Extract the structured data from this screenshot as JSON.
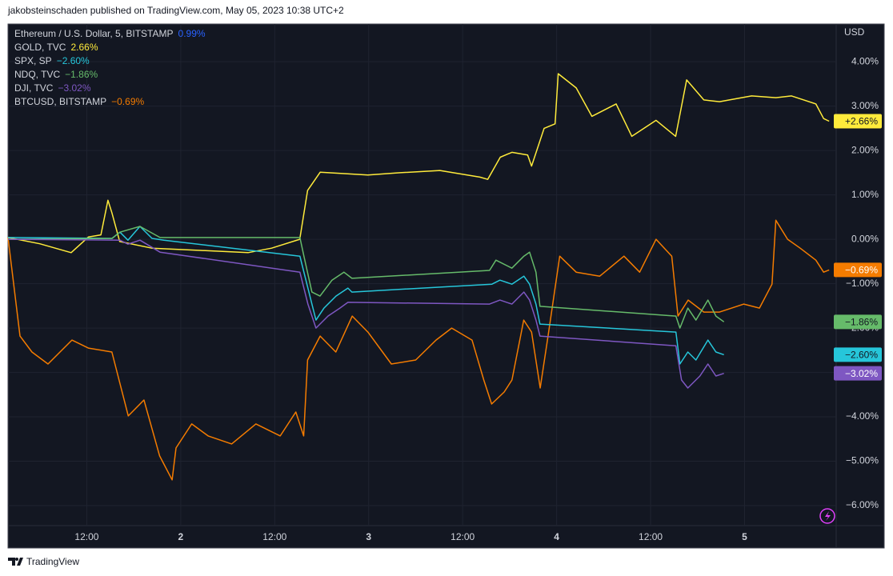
{
  "header": "jakobsteinschaden published on TradingView.com, May 05, 2023 10:38 UTC+2",
  "footer": "TradingView",
  "chart_data": {
    "type": "line",
    "unit_label": "USD",
    "main_symbol": {
      "name": "Ethereum / U.S. Dollar, 5, BITSTAMP",
      "change": 0.99,
      "change_label": "0.99%",
      "color": "#2962ff"
    },
    "xlim": [
      1.94,
      107.7
    ],
    "xticks": [
      {
        "value": 12,
        "label": "12:00"
      },
      {
        "value": 24,
        "label": "2"
      },
      {
        "value": 36,
        "label": "12:00"
      },
      {
        "value": 48,
        "label": "3"
      },
      {
        "value": 60,
        "label": "12:00"
      },
      {
        "value": 72,
        "label": "4"
      },
      {
        "value": 84,
        "label": "12:00"
      },
      {
        "value": 96,
        "label": "5"
      }
    ],
    "ylim": [
      -6.45,
      4.85
    ],
    "yticks": [
      {
        "value": 4,
        "label": "4.00%"
      },
      {
        "value": 3,
        "label": "3.00%"
      },
      {
        "value": 2,
        "label": "2.00%"
      },
      {
        "value": 1,
        "label": "1.00%"
      },
      {
        "value": 0,
        "label": "0.00%"
      },
      {
        "value": -1,
        "label": "−1.00%"
      },
      {
        "value": -2,
        "label": "−2.00%"
      },
      {
        "value": -3,
        "label": "−3.00%"
      },
      {
        "value": -4,
        "label": "−4.00%"
      },
      {
        "value": -5,
        "label": "−5.00%"
      },
      {
        "value": -6,
        "label": "−6.00%"
      }
    ],
    "grid": true,
    "series": [
      {
        "name": "GOLD, TVC",
        "color": "#ffeb3b",
        "badge_text_color": "#131722",
        "last": 2.66,
        "legend_label": "2.66%",
        "badge_label": "+2.66%",
        "x": [
          1.94,
          6,
          10,
          12.2,
          13.8,
          14.7,
          15.2,
          16.2,
          20.3,
          26.5,
          32.6,
          35.6,
          39.2,
          40.2,
          41.8,
          47.9,
          52,
          57.1,
          62.2,
          63.2,
          64.8,
          66.3,
          68.3,
          68.8,
          70.4,
          71.8,
          72.2,
          74.5,
          76.5,
          79.6,
          81.6,
          84.7,
          87.2,
          88.6,
          90.8,
          92.8,
          96.9,
          100,
          102,
          105.1,
          106.1,
          106.8
        ],
        "values": [
          0.04,
          -0.1,
          -0.3,
          0.05,
          0.1,
          0.88,
          0.6,
          -0.05,
          -0.2,
          -0.25,
          -0.3,
          -0.2,
          0.0,
          1.1,
          1.51,
          1.45,
          1.5,
          1.55,
          1.4,
          1.35,
          1.85,
          1.96,
          1.9,
          1.65,
          2.5,
          2.6,
          3.73,
          3.41,
          2.77,
          3.05,
          2.32,
          2.68,
          2.32,
          3.59,
          3.14,
          3.1,
          3.23,
          3.19,
          3.23,
          3.05,
          2.72,
          2.66
        ]
      },
      {
        "name": "SPX, SP",
        "color": "#26c6da",
        "badge_text_color": "#131722",
        "last": -2.6,
        "legend_label": "−2.60%",
        "badge_label": "−2.60%",
        "x": [
          1.94,
          15.22,
          16.24,
          17.26,
          18.79,
          20.33,
          21.86,
          39.22,
          39.73,
          40.75,
          41.27,
          42.29,
          43.82,
          45.35,
          45.86,
          63.74,
          64.76,
          66.29,
          67.82,
          68.54,
          69.36,
          69.87,
          87.23,
          87.74,
          88.76,
          89.79,
          91.32,
          92.34,
          93.36
        ],
        "values": [
          0.04,
          0.02,
          0.16,
          -0.02,
          0.29,
          0.02,
          -0.02,
          -0.38,
          -0.74,
          -1.46,
          -1.82,
          -1.55,
          -1.28,
          -1.1,
          -1.19,
          -1.01,
          -0.92,
          -1.01,
          -0.83,
          -1.01,
          -1.46,
          -1.91,
          -2.09,
          -2.81,
          -2.54,
          -2.72,
          -2.27,
          -2.54,
          -2.6
        ]
      },
      {
        "name": "NDQ, TVC",
        "color": "#66bb6a",
        "badge_text_color": "#131722",
        "last": -1.86,
        "legend_label": "−1.86%",
        "badge_label": "−1.86%",
        "x": [
          1.94,
          15.22,
          16.24,
          18.79,
          21.35,
          39.22,
          39.73,
          40.75,
          41.78,
          43.31,
          44.84,
          45.86,
          63.43,
          64.25,
          66.29,
          67.82,
          68.54,
          69.36,
          69.87,
          87.23,
          87.74,
          88.76,
          89.79,
          91.32,
          92.34,
          93.36
        ],
        "values": [
          0.0,
          0.02,
          0.16,
          0.29,
          0.04,
          0.04,
          -0.38,
          -1.19,
          -1.28,
          -0.92,
          -0.74,
          -0.88,
          -0.7,
          -0.47,
          -0.65,
          -0.38,
          -0.29,
          -0.74,
          -1.51,
          -1.73,
          -2.0,
          -1.55,
          -1.82,
          -1.37,
          -1.73,
          -1.86
        ]
      },
      {
        "name": "DJI, TVC",
        "color": "#7e57c2",
        "badge_text_color": "#ffffff",
        "last": -3.02,
        "legend_label": "−3.02%",
        "badge_label": "−3.02%",
        "x": [
          1.94,
          16.24,
          17.26,
          18.79,
          21.35,
          39.22,
          40.24,
          41.27,
          42.8,
          44.33,
          45.35,
          63.43,
          64.76,
          66.29,
          67.82,
          68.54,
          69.36,
          69.87,
          87.23,
          87.95,
          88.76,
          90.3,
          91.32,
          92.34,
          93.36
        ],
        "values": [
          0.0,
          -0.02,
          -0.11,
          -0.02,
          -0.29,
          -0.74,
          -1.46,
          -2.0,
          -1.73,
          -1.55,
          -1.42,
          -1.46,
          -1.37,
          -1.46,
          -1.19,
          -1.37,
          -1.82,
          -2.18,
          -2.4,
          -3.17,
          -3.35,
          -3.08,
          -2.81,
          -3.08,
          -3.02
        ]
      },
      {
        "name": "BTCUSD, BITSTAMP",
        "color": "#f57c00",
        "badge_text_color": "#ffffff",
        "last": -0.69,
        "legend_label": "−0.69%",
        "badge_label": "−0.69%",
        "x": [
          1.94,
          3.47,
          5,
          7.05,
          10.1,
          12.2,
          15.2,
          17.3,
          19.3,
          21.3,
          22.9,
          23.4,
          25.4,
          27.5,
          30.5,
          33.6,
          36.7,
          38.7,
          39.7,
          40.2,
          41.8,
          43.8,
          45.9,
          47.9,
          50.9,
          54,
          56.6,
          58.6,
          61.2,
          62.7,
          63.7,
          65.3,
          66.3,
          67.8,
          68.8,
          69.9,
          70.9,
          72.4,
          74.5,
          77.5,
          80.6,
          82.6,
          84.7,
          86.7,
          87.5,
          88.8,
          90.8,
          92.8,
          95.9,
          97.9,
          99.5,
          100,
          101.5,
          103.1,
          105.1,
          106.1,
          106.8
        ],
        "values": [
          0.04,
          -2.18,
          -2.54,
          -2.81,
          -2.27,
          -2.45,
          -2.54,
          -3.98,
          -3.62,
          -4.88,
          -5.42,
          -4.7,
          -4.16,
          -4.43,
          -4.61,
          -4.16,
          -4.43,
          -3.89,
          -4.43,
          -2.72,
          -2.18,
          -2.54,
          -1.73,
          -2.09,
          -2.81,
          -2.72,
          -2.27,
          -2.0,
          -2.27,
          -3.17,
          -3.71,
          -3.44,
          -3.17,
          -1.82,
          -2.09,
          -3.35,
          -2.18,
          -0.38,
          -0.74,
          -0.83,
          -0.38,
          -0.74,
          0.0,
          -0.38,
          -1.73,
          -1.37,
          -1.64,
          -1.64,
          -1.46,
          -1.55,
          -1.01,
          0.43,
          0.0,
          -0.2,
          -0.47,
          -0.74,
          -0.69
        ]
      }
    ]
  }
}
